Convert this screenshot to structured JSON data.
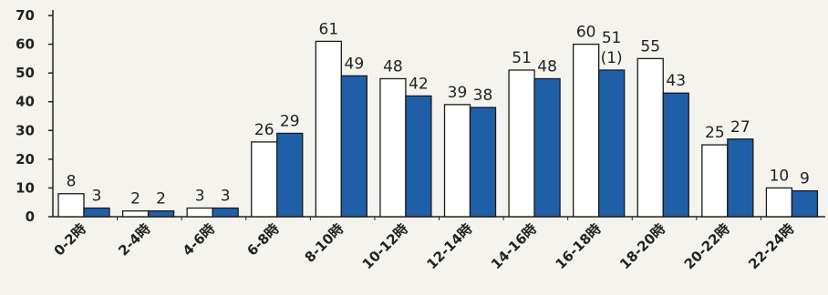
{
  "chart_data": {
    "type": "bar",
    "categories": [
      "0-2時",
      "2-4時",
      "4-6時",
      "6-8時",
      "8-10時",
      "10-12時",
      "12-14時",
      "14-16時",
      "16-18時",
      "18-20時",
      "20-22時",
      "22-24時"
    ],
    "series": [
      {
        "color": "#ffffff",
        "values": [
          8,
          2,
          3,
          26,
          61,
          48,
          39,
          51,
          60,
          55,
          25,
          10
        ]
      },
      {
        "color": "#1f5fa8",
        "values": [
          3,
          2,
          3,
          29,
          49,
          42,
          38,
          48,
          51,
          43,
          27,
          9
        ]
      }
    ],
    "annotations": [
      {
        "category_index": 8,
        "series_index": 1,
        "text": "(1)"
      }
    ],
    "ylim": [
      0,
      70
    ],
    "yticks": [
      0,
      10,
      20,
      30,
      40,
      50,
      60,
      70
    ],
    "grid": false
  },
  "colors": {
    "axis": "#222222",
    "bar_outline": "#1a1a1a",
    "background": "#f4f3ee"
  }
}
